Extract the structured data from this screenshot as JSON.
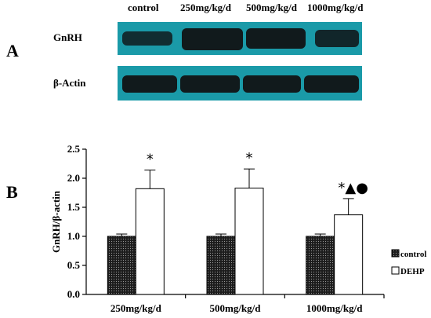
{
  "panels": {
    "a": "A",
    "b": "B"
  },
  "blot": {
    "lanes": [
      "control",
      "250mg/kg/d",
      "500mg/kg/d",
      "1000mg/kg/d"
    ],
    "rows": [
      "GnRH",
      "β-Actin"
    ],
    "strip_color": "#1a9aa8",
    "band_color": "#111a1c"
  },
  "chart_data": {
    "type": "bar",
    "categories": [
      "250mg/kg/d",
      "500mg/kg/d",
      "1000mg/kg/d"
    ],
    "series": [
      {
        "name": "control",
        "values": [
          1.0,
          1.0,
          1.0
        ],
        "errors": [
          0.04,
          0.04,
          0.04
        ],
        "fill": "dotted-dark"
      },
      {
        "name": "DEHP",
        "values": [
          1.82,
          1.83,
          1.37
        ],
        "errors": [
          0.32,
          0.33,
          0.28
        ],
        "fill": "white"
      }
    ],
    "annotations": [
      "*",
      "*",
      "*▲●"
    ],
    "ylabel": "GnRH/β-actin",
    "xlabel": "",
    "ylim": [
      0,
      2.5
    ],
    "yticks": [
      "0.0",
      "0.5",
      "1.0",
      "1.5",
      "2.0",
      "2.5"
    ],
    "legend_position": "right"
  }
}
